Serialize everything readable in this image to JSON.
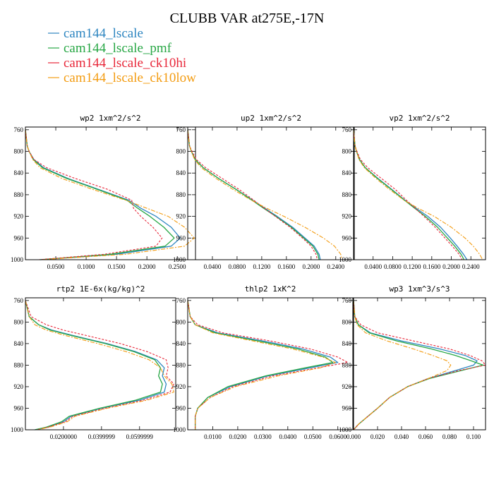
{
  "figure": {
    "title": "CLUBB VAR at275E,-17N"
  },
  "legend": [
    {
      "name": "cam144_lscale",
      "color": "#2e86c1"
    },
    {
      "name": "cam144_lscale_pmf",
      "color": "#28a745"
    },
    {
      "name": "cam144_lscale_ck10hi",
      "color": "#e8283a"
    },
    {
      "name": "cam144_lscale_ck10low",
      "color": "#f39c12"
    }
  ],
  "chart_data": [
    {
      "type": "line",
      "title": "wp2  1xm^2/s^2",
      "xlim": [
        0,
        0.28
      ],
      "ylim": [
        1000,
        755
      ],
      "xticks": [
        0.05,
        0.1,
        0.15,
        0.2,
        0.25
      ],
      "xtick_labels": [
        "0.0500",
        "0.1000",
        "0.1500",
        "0.2000",
        "0.2500"
      ],
      "yticks": [
        760,
        800,
        840,
        880,
        920,
        960,
        1000
      ],
      "ytick_labels": [
        "760",
        "800",
        "840",
        "880",
        "920",
        "960",
        "1000"
      ],
      "y": [
        760,
        790,
        800,
        815,
        830,
        850,
        870,
        890,
        905,
        920,
        940,
        960,
        975,
        990,
        1000
      ],
      "series": [
        {
          "name": "cam144_lscale",
          "x": [
            0,
            0.003,
            0.006,
            0.014,
            0.03,
            0.07,
            0.12,
            0.17,
            0.19,
            0.215,
            0.24,
            0.255,
            0.24,
            0.15,
            0.025
          ]
        },
        {
          "name": "cam144_lscale_pmf",
          "x": [
            0,
            0.003,
            0.006,
            0.013,
            0.028,
            0.068,
            0.118,
            0.167,
            0.185,
            0.205,
            0.228,
            0.245,
            0.23,
            0.14,
            0.024
          ]
        },
        {
          "name": "cam144_lscale_ck10hi",
          "x": [
            0,
            0.003,
            0.006,
            0.014,
            0.035,
            0.082,
            0.135,
            0.175,
            0.178,
            0.19,
            0.21,
            0.225,
            0.215,
            0.13,
            0.022
          ]
        },
        {
          "name": "cam144_lscale_ck10low",
          "x": [
            0,
            0.003,
            0.006,
            0.012,
            0.024,
            0.06,
            0.11,
            0.165,
            0.2,
            0.235,
            0.262,
            0.278,
            0.262,
            0.165,
            0.027
          ]
        }
      ]
    },
    {
      "type": "line",
      "title": "up2  1xm^2/s^2",
      "xlim": [
        0,
        0.27
      ],
      "ylim": [
        1000,
        755
      ],
      "xticks": [
        0.04,
        0.08,
        0.12,
        0.16,
        0.2,
        0.24
      ],
      "xtick_labels": [
        "0.0400",
        "0.0800",
        "0.1200",
        "0.1600",
        "0.2000",
        "0.2400"
      ],
      "yticks": [
        760,
        800,
        840,
        880,
        920,
        960,
        1000
      ],
      "ytick_labels": [
        "760",
        "800",
        "840",
        "880",
        "920",
        "960",
        "1000"
      ],
      "y": [
        760,
        790,
        800,
        815,
        830,
        850,
        870,
        890,
        905,
        920,
        940,
        960,
        975,
        990,
        1000
      ],
      "series": [
        {
          "name": "cam144_lscale",
          "x": [
            0,
            0.003,
            0.006,
            0.012,
            0.025,
            0.05,
            0.078,
            0.105,
            0.125,
            0.145,
            0.17,
            0.19,
            0.205,
            0.213,
            0.215
          ]
        },
        {
          "name": "cam144_lscale_pmf",
          "x": [
            0,
            0.003,
            0.006,
            0.012,
            0.025,
            0.05,
            0.078,
            0.104,
            0.123,
            0.143,
            0.168,
            0.188,
            0.203,
            0.211,
            0.213
          ]
        },
        {
          "name": "cam144_lscale_ck10hi",
          "x": [
            0,
            0.003,
            0.007,
            0.014,
            0.029,
            0.056,
            0.083,
            0.107,
            0.124,
            0.142,
            0.166,
            0.186,
            0.2,
            0.208,
            0.21
          ]
        },
        {
          "name": "cam144_lscale_ck10low",
          "x": [
            0,
            0.003,
            0.006,
            0.011,
            0.022,
            0.046,
            0.073,
            0.103,
            0.128,
            0.156,
            0.19,
            0.22,
            0.238,
            0.248,
            0.25
          ]
        }
      ]
    },
    {
      "type": "line",
      "title": "vp2  1xm^2/s^2",
      "xlim": [
        0,
        0.27
      ],
      "ylim": [
        1000,
        755
      ],
      "xticks": [
        0.04,
        0.08,
        0.12,
        0.16,
        0.2,
        0.24
      ],
      "xtick_labels": [
        "0.0400",
        "0.0800",
        "0.1200",
        "0.1600",
        "0.2000",
        "0.2400"
      ],
      "yticks": [
        760,
        800,
        840,
        880,
        920,
        960,
        1000
      ],
      "ytick_labels": [
        "760",
        "800",
        "840",
        "880",
        "920",
        "960",
        "1000"
      ],
      "y": [
        760,
        790,
        800,
        815,
        830,
        850,
        870,
        890,
        905,
        920,
        940,
        960,
        975,
        990,
        1000
      ],
      "series": [
        {
          "name": "cam144_lscale",
          "x": [
            0,
            0.003,
            0.006,
            0.012,
            0.024,
            0.05,
            0.078,
            0.105,
            0.128,
            0.152,
            0.178,
            0.198,
            0.212,
            0.225,
            0.232
          ]
        },
        {
          "name": "cam144_lscale_pmf",
          "x": [
            0,
            0.003,
            0.006,
            0.012,
            0.024,
            0.049,
            0.077,
            0.104,
            0.125,
            0.147,
            0.172,
            0.192,
            0.207,
            0.22,
            0.226
          ]
        },
        {
          "name": "cam144_lscale_ck10hi",
          "x": [
            0,
            0.003,
            0.007,
            0.014,
            0.029,
            0.057,
            0.085,
            0.108,
            0.126,
            0.144,
            0.167,
            0.187,
            0.202,
            0.216,
            0.222
          ]
        },
        {
          "name": "cam144_lscale_ck10low",
          "x": [
            0,
            0.003,
            0.006,
            0.011,
            0.022,
            0.046,
            0.073,
            0.103,
            0.132,
            0.165,
            0.2,
            0.228,
            0.245,
            0.258,
            0.264
          ]
        }
      ]
    },
    {
      "type": "line",
      "title": "rtp2  1E-6x(kg/kg)^2",
      "xlim": [
        0,
        0.079
      ],
      "ylim": [
        1000,
        755
      ],
      "xticks": [
        0.02,
        0.04,
        0.06
      ],
      "xtick_labels": [
        "0.0200000",
        "0.0399999",
        "0.0599999"
      ],
      "yticks": [
        760,
        800,
        840,
        880,
        920,
        960,
        1000
      ],
      "ytick_labels": [
        "760",
        "800",
        "840",
        "880",
        "920",
        "960",
        "1000"
      ],
      "y": [
        760,
        790,
        805,
        815,
        825,
        840,
        855,
        870,
        885,
        900,
        915,
        930,
        945,
        960,
        975,
        985,
        995,
        1000
      ],
      "series": [
        {
          "name": "cam144_lscale",
          "x": [
            0,
            0.002,
            0.007,
            0.014,
            0.025,
            0.043,
            0.058,
            0.069,
            0.073,
            0.072,
            0.074,
            0.073,
            0.06,
            0.04,
            0.024,
            0.02,
            0.012,
            0.005
          ]
        },
        {
          "name": "cam144_lscale_pmf",
          "x": [
            0,
            0.002,
            0.007,
            0.013,
            0.024,
            0.042,
            0.057,
            0.068,
            0.071,
            0.07,
            0.072,
            0.071,
            0.058,
            0.039,
            0.023,
            0.019,
            0.011,
            0.005
          ]
        },
        {
          "name": "cam144_lscale_ck10hi",
          "x": [
            0,
            0.003,
            0.011,
            0.02,
            0.032,
            0.05,
            0.064,
            0.074,
            0.075,
            0.074,
            0.078,
            0.076,
            0.062,
            0.042,
            0.025,
            0.021,
            0.012,
            0.006
          ]
        },
        {
          "name": "cam144_lscale_ck10low",
          "x": [
            0,
            0.002,
            0.005,
            0.011,
            0.021,
            0.038,
            0.053,
            0.065,
            0.071,
            0.073,
            0.077,
            0.078,
            0.064,
            0.043,
            0.026,
            0.022,
            0.013,
            0.006
          ]
        }
      ]
    },
    {
      "type": "line",
      "title": "thlp2  1xK^2",
      "xlim": [
        0,
        0.066
      ],
      "ylim": [
        1000,
        755
      ],
      "xticks": [
        0.01,
        0.02,
        0.03,
        0.04,
        0.05,
        0.06
      ],
      "xtick_labels": [
        "0.0100",
        "0.0200",
        "0.0300",
        "0.0400",
        "0.0500",
        "0.0600"
      ],
      "yticks": [
        760,
        800,
        840,
        880,
        920,
        960,
        1000
      ],
      "ytick_labels": [
        "760",
        "800",
        "840",
        "880",
        "920",
        "960",
        "1000"
      ],
      "y": [
        760,
        790,
        805,
        820,
        835,
        850,
        865,
        875,
        885,
        900,
        920,
        940,
        960,
        975,
        990,
        1000
      ],
      "series": [
        {
          "name": "cam144_lscale",
          "x": [
            0,
            0.001,
            0.003,
            0.012,
            0.03,
            0.046,
            0.057,
            0.06,
            0.049,
            0.032,
            0.017,
            0.008,
            0.004,
            0.003,
            0.003,
            0.003
          ]
        },
        {
          "name": "cam144_lscale_pmf",
          "x": [
            0,
            0.001,
            0.003,
            0.011,
            0.028,
            0.044,
            0.055,
            0.058,
            0.047,
            0.031,
            0.016,
            0.008,
            0.004,
            0.003,
            0.003,
            0.003
          ]
        },
        {
          "name": "cam144_lscale_ck10hi",
          "x": [
            0,
            0.001,
            0.004,
            0.014,
            0.033,
            0.049,
            0.06,
            0.064,
            0.052,
            0.034,
            0.018,
            0.009,
            0.004,
            0.003,
            0.003,
            0.003
          ]
        },
        {
          "name": "cam144_lscale_ck10low",
          "x": [
            0,
            0.001,
            0.003,
            0.01,
            0.026,
            0.042,
            0.054,
            0.059,
            0.053,
            0.036,
            0.019,
            0.009,
            0.004,
            0.003,
            0.003,
            0.003
          ]
        }
      ]
    },
    {
      "type": "line",
      "title": "wp3  1xm^3/s^3",
      "xlim": [
        0,
        0.11
      ],
      "ylim": [
        1000,
        755
      ],
      "xticks": [
        0,
        0.02,
        0.04,
        0.06,
        0.08,
        0.1
      ],
      "xtick_labels": [
        "0.000",
        "0.020",
        "0.040",
        "0.060",
        "0.080",
        "0.100"
      ],
      "yticks": [
        760,
        800,
        840,
        880,
        920,
        960,
        1000
      ],
      "ytick_labels": [
        "760",
        "800",
        "840",
        "880",
        "920",
        "960",
        "1000"
      ],
      "y": [
        760,
        790,
        805,
        820,
        835,
        850,
        862,
        872,
        880,
        890,
        905,
        920,
        940,
        960,
        975,
        990,
        1000
      ],
      "series": [
        {
          "name": "cam144_lscale",
          "x": [
            0,
            0.001,
            0.004,
            0.014,
            0.04,
            0.072,
            0.093,
            0.103,
            0.1,
            0.085,
            0.062,
            0.045,
            0.03,
            0.02,
            0.012,
            0.004,
            0
          ]
        },
        {
          "name": "cam144_lscale_pmf",
          "x": [
            0,
            0.001,
            0.004,
            0.013,
            0.036,
            0.065,
            0.085,
            0.098,
            0.108,
            0.09,
            0.063,
            0.045,
            0.03,
            0.02,
            0.012,
            0.004,
            0
          ]
        },
        {
          "name": "cam144_lscale_ck10hi",
          "x": [
            0,
            0.001,
            0.006,
            0.02,
            0.05,
            0.08,
            0.097,
            0.107,
            0.11,
            0.088,
            0.062,
            0.045,
            0.03,
            0.02,
            0.012,
            0.004,
            0
          ]
        },
        {
          "name": "cam144_lscale_ck10low",
          "x": [
            0,
            0.001,
            0.003,
            0.01,
            0.028,
            0.05,
            0.066,
            0.078,
            0.081,
            0.078,
            0.062,
            0.045,
            0.03,
            0.02,
            0.012,
            0.004,
            0
          ]
        }
      ]
    }
  ]
}
